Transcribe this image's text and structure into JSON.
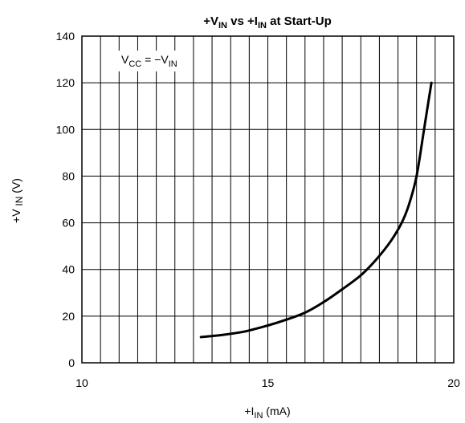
{
  "chart_data": {
    "type": "line",
    "title": {
      "pre": "+V",
      "sub1": "IN",
      "mid": " vs +I",
      "sub2": "IN",
      "post": " at Start-Up"
    },
    "xlabel": {
      "pre": "+I",
      "sub": "IN",
      "post": "  (mA)"
    },
    "ylabel": {
      "pre": "+V ",
      "sub": "IN",
      "post": " (V)"
    },
    "annotation": {
      "a": "V",
      "a_sub": "CC",
      "b": " = −V",
      "b_sub": "IN"
    },
    "xlim": [
      10,
      20
    ],
    "ylim": [
      0,
      140
    ],
    "x_ticks": [
      10,
      15,
      20
    ],
    "y_ticks": [
      0,
      20,
      40,
      60,
      80,
      100,
      120,
      140
    ],
    "x_grid_step": 0.5,
    "y_grid_step": 20,
    "grid": true,
    "line_color": "#000000",
    "series": [
      {
        "x": [
          13.2,
          13.8,
          14.4,
          15.0,
          15.5,
          16.0,
          16.5,
          17.0,
          17.5,
          17.9,
          18.3,
          18.6,
          18.8,
          19.0,
          19.2,
          19.4
        ],
        "y": [
          11,
          12,
          13.5,
          16,
          18.5,
          21.5,
          26,
          31.5,
          37.5,
          44,
          52,
          60,
          68,
          80,
          100,
          120
        ]
      }
    ]
  }
}
